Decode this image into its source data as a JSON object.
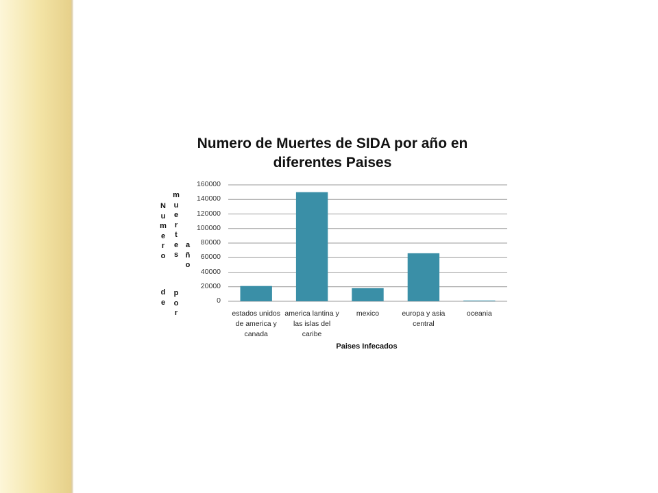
{
  "slide": {
    "accent_color": "#f3e4a6"
  },
  "chart_data": {
    "type": "bar",
    "title": "Numero de Muertes de SIDA por año en diferentes Paises",
    "categories": [
      "estados unidos de america y canada",
      "america lantina y las islas del caribe",
      "mexico",
      "europa y asia central",
      "oceania"
    ],
    "values": [
      21000,
      150000,
      18000,
      66000,
      1000
    ],
    "bar_color": "#3a8fa7",
    "ylabel": "Numero de muertes por año",
    "ylabel_lines": [
      "Numero",
      "de",
      "muertes",
      "por",
      "año"
    ],
    "xlabel": "Paises Infecados",
    "ylim": [
      0,
      160000
    ],
    "yticks": [
      "0",
      "20000",
      "40000",
      "60000",
      "80000",
      "100000",
      "120000",
      "140000",
      "160000"
    ],
    "grid": true,
    "legend": "none"
  }
}
